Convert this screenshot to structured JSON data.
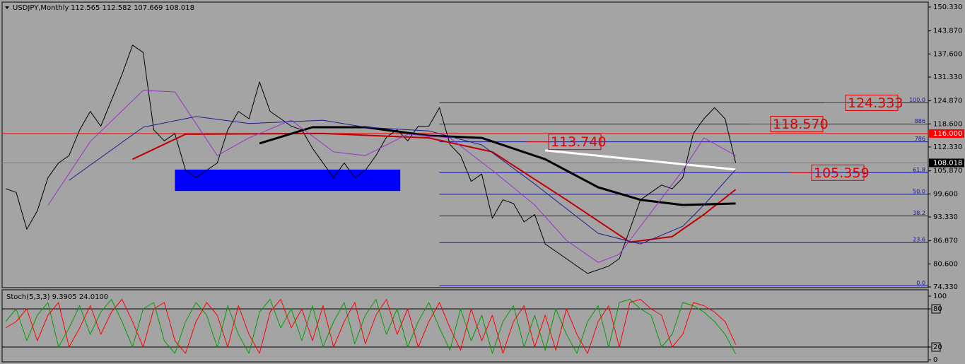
{
  "chart_data": [
    {
      "type": "line",
      "title": "USDJPY,Monthly",
      "ohlc_text": "112.565 112.582 107.669 108.018",
      "xlim": [
        -0.33,
        87.2
      ],
      "ylim": [
        74.14,
        151.67
      ],
      "yticks": [
        {
          "value": 150.33,
          "label": "150.330"
        },
        {
          "value": 143.87,
          "label": "143.870"
        },
        {
          "value": 137.6,
          "label": "137.600"
        },
        {
          "value": 131.33,
          "label": "131.330"
        },
        {
          "value": 124.87,
          "label": "124.870"
        },
        {
          "value": 118.6,
          "label": "118.600"
        },
        {
          "value": 112.33,
          "label": "112.330"
        },
        {
          "value": 105.87,
          "label": "105.870"
        },
        {
          "value": 99.6,
          "label": "99.600"
        },
        {
          "value": 93.33,
          "label": "93.330"
        },
        {
          "value": 86.87,
          "label": "86.870"
        },
        {
          "value": 80.6,
          "label": "80.600"
        },
        {
          "value": 74.33,
          "label": "74.330"
        }
      ],
      "series": [
        {
          "color": "#000000",
          "values": [
            101,
            100,
            90,
            95,
            104,
            108,
            110,
            117,
            122,
            118,
            125,
            132,
            140,
            138,
            117,
            114,
            116,
            106,
            104,
            106,
            108,
            117,
            122,
            120,
            130,
            122,
            120,
            118,
            117,
            112,
            108,
            104,
            108,
            104,
            106,
            110,
            115,
            117,
            114,
            118,
            118,
            123,
            113,
            110,
            103,
            105,
            93,
            98,
            97,
            92,
            94,
            86,
            84,
            82,
            80,
            78,
            79,
            80,
            82,
            90,
            98,
            100,
            102,
            101,
            104,
            116,
            120,
            123,
            120,
            108.018
          ]
        },
        {
          "color": "#c00000",
          "x": [
            12,
            17,
            30,
            40,
            46,
            53,
            59,
            63,
            66,
            69
          ],
          "values": [
            109,
            115.8,
            116,
            114.8,
            111,
            98,
            86.5,
            88,
            94,
            100.8
          ]
        },
        {
          "color": "#000000",
          "x": [
            24,
            29,
            34,
            40,
            45,
            51,
            56,
            60,
            64,
            69
          ],
          "values": [
            113.3,
            117.7,
            117.7,
            115.4,
            114.8,
            109,
            101.4,
            98,
            96.6,
            97
          ]
        },
        {
          "color": "#ffffff",
          "x": [
            51,
            69
          ],
          "values": [
            111.4,
            106.2
          ]
        },
        {
          "color": "#9932cc",
          "x": [
            4,
            8,
            13,
            16,
            20,
            23,
            27,
            31,
            34,
            38,
            42,
            46,
            50,
            53,
            56,
            58,
            61,
            64,
            66,
            69
          ],
          "values": [
            96.5,
            113.8,
            127.7,
            127.3,
            110,
            114.8,
            119.6,
            111,
            110,
            115.8,
            114.8,
            106,
            96.6,
            87,
            81,
            83.2,
            94.6,
            106,
            114.8,
            110
          ]
        },
        {
          "color": "#1e1e8c",
          "x": [
            6,
            13,
            18,
            23,
            30,
            34,
            40,
            45,
            50,
            56,
            60,
            64,
            66,
            69
          ],
          "values": [
            103.3,
            117.7,
            120.6,
            118.7,
            119.6,
            117.7,
            116.7,
            112.9,
            102.3,
            88.9,
            86,
            90.8,
            96.6,
            106.2
          ]
        }
      ],
      "zones": [
        {
          "x": [
            16,
            37.3
          ],
          "y": [
            100.4,
            106.2
          ],
          "color": "#0000ff"
        }
      ],
      "hlines": [
        {
          "value": 116,
          "label": "116.000",
          "color": "#ff0000"
        }
      ],
      "last_price": {
        "value": 108.018,
        "label": "108.018"
      },
      "fibonacci": {
        "x_start": 41,
        "color": "#1a1aa0",
        "levels": [
          {
            "label": "100.0",
            "value": 124.333
          },
          {
            "label": "886",
            "value": 118.57
          },
          {
            "label": "786",
            "value": 113.74
          },
          {
            "label": "61.8",
            "value": 105.359
          },
          {
            "label": "50.0",
            "value": 99.5
          },
          {
            "label": "38.2",
            "value": 93.63
          },
          {
            "label": "23.6",
            "value": 86.38
          },
          {
            "label": "0.0",
            "value": 74.66
          }
        ]
      },
      "annotations": [
        {
          "label": "124.333",
          "value": 124.333
        },
        {
          "label": "118.570",
          "value": 118.57
        },
        {
          "label": "113.740",
          "value": 113.74
        },
        {
          "label": "105.359",
          "value": 105.359
        }
      ]
    },
    {
      "type": "line",
      "title": "Stoch(5,3,3) 9.3905 24.0100",
      "xlim": [
        -0.33,
        87.2
      ],
      "ylim": [
        -3.3,
        110
      ],
      "yticks": [
        100,
        80,
        20,
        0
      ],
      "levels": [
        80,
        20
      ],
      "series": [
        {
          "color": "#00a000",
          "values": [
            60,
            80,
            30,
            70,
            90,
            20,
            50,
            85,
            40,
            75,
            95,
            60,
            20,
            80,
            90,
            30,
            10,
            60,
            90,
            70,
            20,
            85,
            40,
            10,
            75,
            95,
            50,
            80,
            30,
            85,
            20,
            60,
            90,
            25,
            70,
            95,
            40,
            80,
            20,
            60,
            90,
            50,
            15,
            80,
            30,
            70,
            10,
            60,
            85,
            20,
            70,
            15,
            80,
            40,
            10,
            60,
            85,
            20,
            90,
            95,
            80,
            70,
            20,
            40,
            90,
            85,
            75,
            60,
            40,
            9.3905
          ]
        },
        {
          "color": "#ff0000",
          "values": [
            50,
            60,
            80,
            30,
            70,
            90,
            20,
            50,
            85,
            40,
            75,
            95,
            60,
            20,
            80,
            90,
            30,
            10,
            60,
            90,
            70,
            20,
            85,
            40,
            10,
            75,
            95,
            50,
            80,
            30,
            85,
            20,
            60,
            90,
            25,
            70,
            95,
            40,
            80,
            20,
            60,
            90,
            50,
            15,
            80,
            30,
            70,
            10,
            60,
            85,
            20,
            70,
            15,
            80,
            40,
            10,
            60,
            85,
            20,
            90,
            95,
            80,
            70,
            20,
            40,
            90,
            85,
            75,
            60,
            24.01
          ]
        }
      ]
    }
  ]
}
